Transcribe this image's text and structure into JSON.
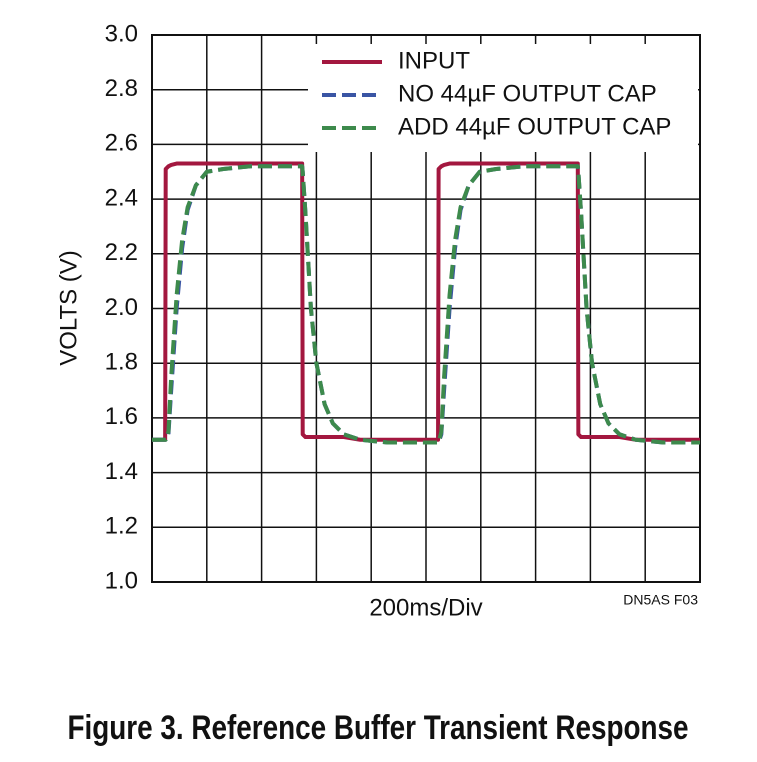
{
  "chart_data": {
    "type": "line",
    "title": "Figure 3. Reference Buffer Transient Response",
    "xlabel": "200ms/Div",
    "ylabel": "VOLTS (V)",
    "annotation": "DN5AS F03",
    "x": [
      0,
      0.24,
      0.25,
      0.3,
      0.35,
      0.45,
      0.55,
      0.65,
      0.8,
      1.0,
      1.3,
      1.8,
      2.74,
      2.75,
      2.8,
      2.9,
      3.0,
      3.15,
      3.3,
      3.5,
      3.8,
      4.3,
      5.22,
      5.23,
      5.28,
      5.33,
      5.43,
      5.53,
      5.63,
      5.78,
      5.98,
      6.28,
      6.78,
      7.77,
      7.78,
      7.83,
      7.93,
      8.03,
      8.18,
      8.33,
      8.53,
      8.83,
      9.33,
      10
    ],
    "series": [
      {
        "name": "INPUT",
        "color": "#a3173f",
        "dash": false,
        "values": [
          1.52,
          1.52,
          2.51,
          2.52,
          2.525,
          2.53,
          2.53,
          2.53,
          2.53,
          2.53,
          2.53,
          2.53,
          2.53,
          1.54,
          1.53,
          1.53,
          1.53,
          1.53,
          1.53,
          1.53,
          1.52,
          1.52,
          1.52,
          2.51,
          2.52,
          2.525,
          2.53,
          2.53,
          2.53,
          2.53,
          2.53,
          2.53,
          2.53,
          2.53,
          1.54,
          1.53,
          1.53,
          1.53,
          1.53,
          1.53,
          1.53,
          1.52,
          1.52,
          1.52
        ]
      },
      {
        "name": "NO 44µF OUTPUT CAP",
        "color": "#3a55a4",
        "dash": true,
        "values": [
          1.52,
          1.52,
          1.52,
          1.54,
          1.7,
          2.0,
          2.22,
          2.36,
          2.45,
          2.5,
          2.51,
          2.52,
          2.52,
          2.5,
          2.35,
          2.0,
          1.8,
          1.65,
          1.58,
          1.54,
          1.52,
          1.51,
          1.51,
          1.51,
          1.54,
          1.7,
          2.0,
          2.22,
          2.36,
          2.45,
          2.5,
          2.51,
          2.52,
          2.52,
          2.5,
          2.35,
          2.0,
          1.8,
          1.65,
          1.58,
          1.54,
          1.52,
          1.51,
          1.51
        ]
      },
      {
        "name": "ADD 44µF OUTPUT CAP",
        "color": "#3d8a4c",
        "dash": true,
        "values": [
          1.52,
          1.52,
          1.52,
          1.55,
          1.75,
          2.05,
          2.25,
          2.37,
          2.45,
          2.5,
          2.51,
          2.52,
          2.52,
          2.5,
          2.35,
          2.0,
          1.8,
          1.65,
          1.58,
          1.54,
          1.52,
          1.51,
          1.51,
          1.51,
          1.55,
          1.75,
          2.05,
          2.25,
          2.37,
          2.45,
          2.5,
          2.51,
          2.52,
          2.52,
          2.5,
          2.35,
          2.0,
          1.8,
          1.65,
          1.58,
          1.54,
          1.52,
          1.51,
          1.51
        ]
      }
    ],
    "xlim": [
      0,
      10
    ],
    "xticks": [
      0,
      1,
      2,
      3,
      4,
      5,
      6,
      7,
      8,
      9,
      10
    ],
    "ylim": [
      1.0,
      3.0
    ],
    "yticks": [
      {
        "value": 1.0,
        "label": "1.0"
      },
      1.2,
      1.4,
      1.6,
      1.8,
      {
        "value": 2.0,
        "label": "2.0"
      },
      2.2,
      2.4,
      2.6,
      2.8,
      {
        "value": 3.0,
        "label": "3.0"
      }
    ],
    "grid": true
  }
}
